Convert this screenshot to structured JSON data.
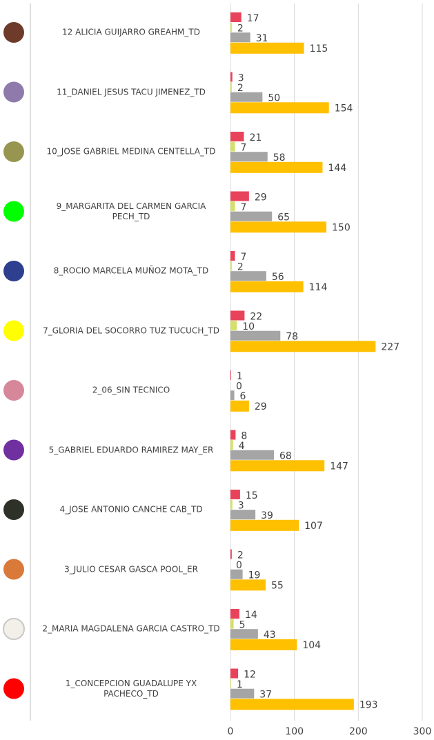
{
  "chart_data": {
    "type": "bar",
    "orientation": "horizontal",
    "categories": [
      "12 ALICIA GUIJARRO GREAHM_TD",
      "11_DANIEL JESUS TACU JIMENEZ_TD",
      "10_JOSE GABRIEL MEDINA CENTELLA_TD",
      "9_MARGARITA DEL CARMEN GARCIA PECH_TD",
      "8_ROCIO MARCELA MUÑOZ MOTA_TD",
      "7_GLORIA DEL SOCORRO TUZ TUCUCH_TD",
      "2_06_SIN TECNICO",
      "5_GABRIEL EDUARDO RAMIREZ MAY_ER",
      "4_JOSE ANTONIO CANCHE CAB_TD",
      "3_JULIO CESAR GASCA POOL_ER",
      "2_MARIA MAGDALENA GARCIA CASTRO_TD",
      "1_CONCEPCION GUADALUPE YX PACHECO_TD"
    ],
    "marker_colors": [
      "#6e3b2b",
      "#8e7bab",
      "#97954f",
      "#00ff00",
      "#2e3f8f",
      "#ffff00",
      "#d6879a",
      "#7030a0",
      "#2d3128",
      "#d9793a",
      "#f2f0e8",
      "#ff0000"
    ],
    "series": [
      {
        "color": "#e8435a",
        "values": [
          17,
          3,
          21,
          29,
          7,
          22,
          1,
          8,
          15,
          2,
          14,
          12
        ]
      },
      {
        "color": "#d4e06b",
        "values": [
          2,
          2,
          7,
          7,
          2,
          10,
          0,
          4,
          3,
          0,
          5,
          1
        ]
      },
      {
        "color": "#a5a5a5",
        "values": [
          31,
          50,
          58,
          65,
          56,
          78,
          6,
          68,
          39,
          19,
          43,
          37
        ]
      },
      {
        "color": "#ffc000",
        "values": [
          115,
          154,
          144,
          150,
          114,
          227,
          29,
          147,
          107,
          55,
          104,
          193
        ]
      }
    ],
    "xlim": [
      0,
      300
    ],
    "xticks": [
      0,
      100,
      200,
      300
    ],
    "grid": true
  }
}
